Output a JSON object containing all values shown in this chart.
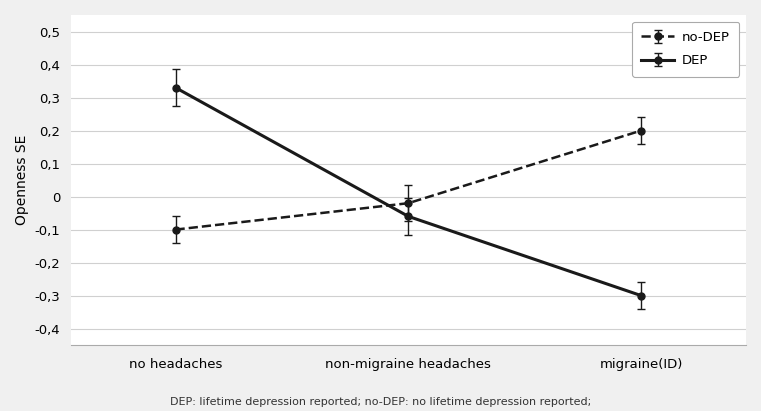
{
  "x_labels": [
    "no headaches",
    "non-migraine headaches",
    "migraine(ID)"
  ],
  "dep_values": [
    0.33,
    -0.06,
    -0.3
  ],
  "dep_errors": [
    0.055,
    0.055,
    0.04
  ],
  "nodep_values": [
    -0.1,
    -0.02,
    0.2
  ],
  "nodep_errors": [
    0.04,
    0.055,
    0.04
  ],
  "ylabel": "Openness SE",
  "ylim": [
    -0.45,
    0.55
  ],
  "yticks": [
    -0.4,
    -0.3,
    -0.2,
    -0.1,
    0.0,
    0.1,
    0.2,
    0.3,
    0.4,
    0.5
  ],
  "line_color": "#1a1a1a",
  "legend_nodep": "no-DEP",
  "legend_dep": "DEP",
  "caption": "DEP: lifetime depression reported; no-DEP: no lifetime depression reported;",
  "background_color": "#f0f0f0",
  "plot_bg_color": "#ffffff"
}
